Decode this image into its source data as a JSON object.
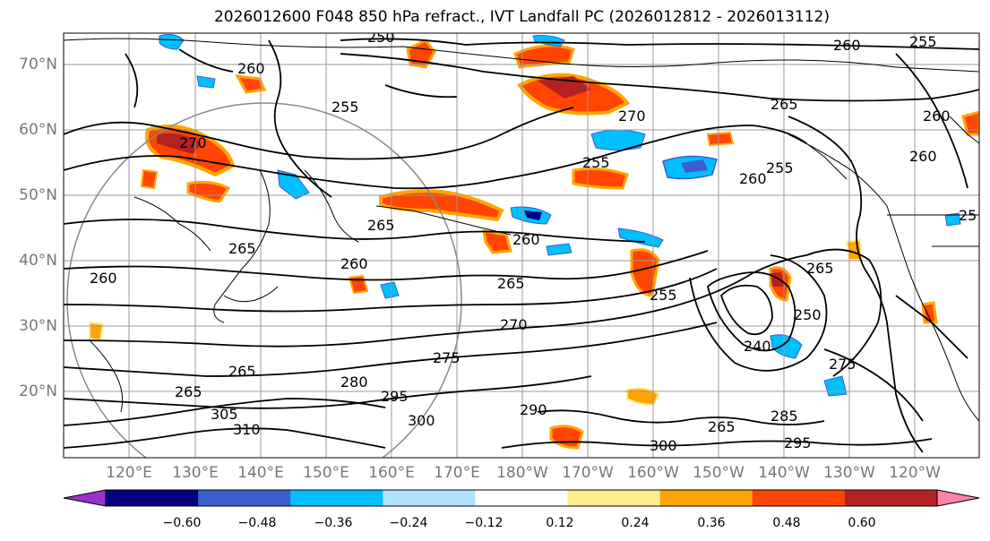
{
  "title": "2026012600 F048 850 hPa refract., IVT Landfall PC (2026012812 - 2026013112)",
  "lat_labels": [
    "70°N",
    "60°N",
    "50°N",
    "40°N",
    "30°N",
    "20°N"
  ],
  "lon_labels": [
    "120°E",
    "130°E",
    "140°E",
    "150°E",
    "160°E",
    "170°E",
    "180°W",
    "170°W",
    "160°W",
    "150°W",
    "140°W",
    "130°W",
    "120°W"
  ],
  "colorbar": {
    "colors": [
      "#9932cc",
      "#000080",
      "#3a5fcd",
      "#00bfff",
      "#b0e2ff",
      "#ffffff",
      "#ffec8b",
      "#ffa500",
      "#ff4500",
      "#b22222",
      "#ff82ab"
    ],
    "tick_labels": [
      "−0.60",
      "−0.48",
      "−0.36",
      "−0.24",
      "−0.12",
      "0.12",
      "0.24",
      "0.36",
      "0.48",
      "0.60"
    ]
  },
  "contour_labels": [
    {
      "text": "250"
    },
    {
      "text": "260"
    },
    {
      "text": "255"
    },
    {
      "text": "260"
    },
    {
      "text": "255"
    },
    {
      "text": "270"
    },
    {
      "text": "270"
    },
    {
      "text": "265"
    },
    {
      "text": "255"
    },
    {
      "text": "260"
    },
    {
      "text": "255"
    },
    {
      "text": "260"
    },
    {
      "text": "260"
    },
    {
      "text": "265"
    },
    {
      "text": "260"
    },
    {
      "text": "260"
    },
    {
      "text": "265"
    },
    {
      "text": "270"
    },
    {
      "text": "275"
    },
    {
      "text": "280"
    },
    {
      "text": "265"
    },
    {
      "text": "295"
    },
    {
      "text": "300"
    },
    {
      "text": "305"
    },
    {
      "text": "310"
    },
    {
      "text": "290"
    },
    {
      "text": "300"
    },
    {
      "text": "265"
    },
    {
      "text": "285"
    },
    {
      "text": "295"
    },
    {
      "text": "250"
    },
    {
      "text": "240"
    },
    {
      "text": "265"
    },
    {
      "text": "275"
    },
    {
      "text": "260"
    },
    {
      "text": "265"
    },
    {
      "text": "25"
    },
    {
      "text": "265"
    },
    {
      "text": "255"
    }
  ]
}
